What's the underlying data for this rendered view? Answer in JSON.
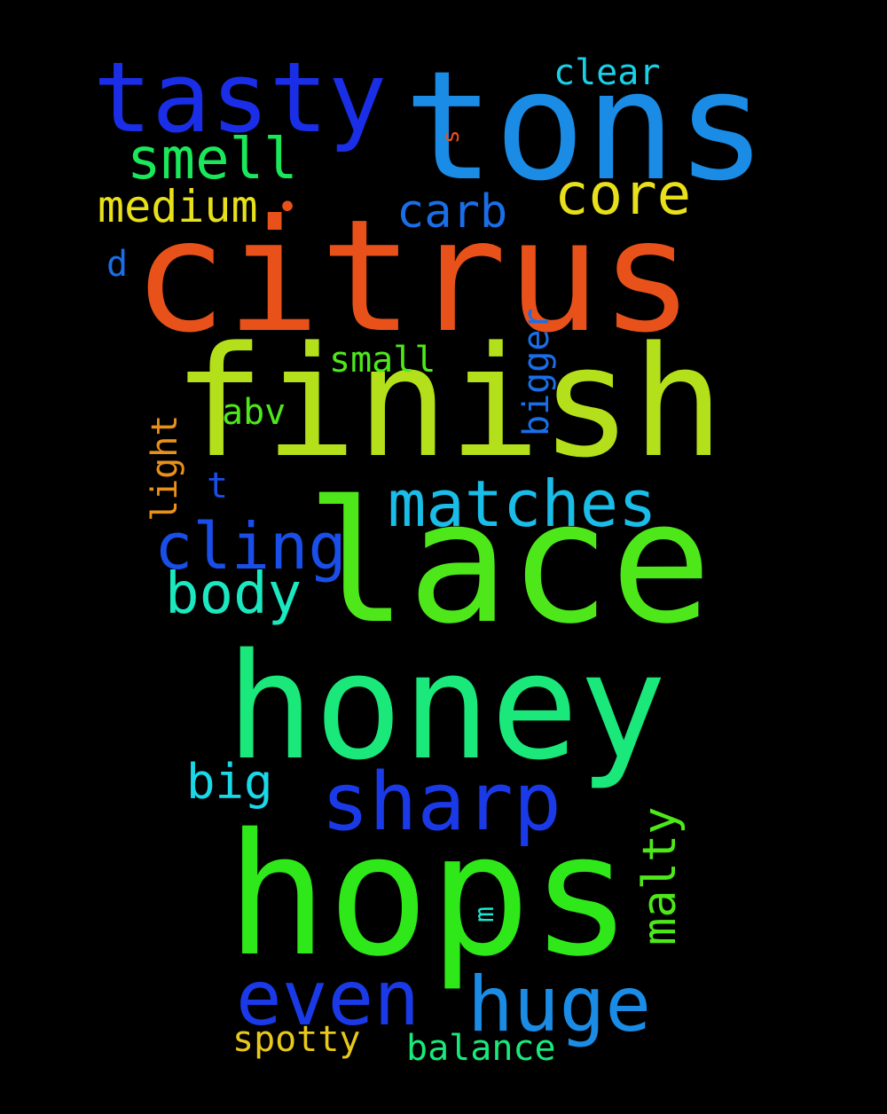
{
  "words": [
    {
      "id": "tons",
      "text": "tons",
      "color": "#1a8ce6"
    },
    {
      "id": "citrus",
      "text": "citrus",
      "color": "#e8521a"
    },
    {
      "id": "finish",
      "text": "finish",
      "color": "#b3e01a"
    },
    {
      "id": "lace",
      "text": "lace",
      "color": "#4ee81a"
    },
    {
      "id": "honey",
      "text": "honey",
      "color": "#1ae87a"
    },
    {
      "id": "hops",
      "text": "hops",
      "color": "#2ee81a"
    },
    {
      "id": "tasty",
      "text": "tasty",
      "color": "#1a2ee8"
    },
    {
      "id": "smell",
      "text": "smell",
      "color": "#1ae85a"
    },
    {
      "id": "core",
      "text": "core",
      "color": "#e8e01a"
    },
    {
      "id": "medium",
      "text": "medium",
      "color": "#e8e01a"
    },
    {
      "id": "carb",
      "text": "carb",
      "color": "#1a6ee8"
    },
    {
      "id": "clear",
      "text": "clear",
      "color": "#1ad0e8"
    },
    {
      "id": "s",
      "text": "s",
      "color": "#e8521a"
    },
    {
      "id": "dot",
      "text": "•",
      "color": "#e8521a"
    },
    {
      "id": "d",
      "text": "d",
      "color": "#1a6ee8"
    },
    {
      "id": "small",
      "text": "small",
      "color": "#4ee81a"
    },
    {
      "id": "abv",
      "text": "abv",
      "color": "#4ee81a"
    },
    {
      "id": "bigger",
      "text": "bigger",
      "color": "#1a6ee8"
    },
    {
      "id": "light",
      "text": "light",
      "color": "#e8901a"
    },
    {
      "id": "t",
      "text": "t",
      "color": "#1a4ee8"
    },
    {
      "id": "matches",
      "text": "matches",
      "color": "#1abce8"
    },
    {
      "id": "cling",
      "text": "cling",
      "color": "#1a4ee8"
    },
    {
      "id": "body",
      "text": "body",
      "color": "#1ae8c0"
    },
    {
      "id": "sharp",
      "text": "sharp",
      "color": "#1a3ae8"
    },
    {
      "id": "big",
      "text": "big",
      "color": "#1ad8e8"
    },
    {
      "id": "malty",
      "text": "malty",
      "color": "#4ee81a"
    },
    {
      "id": "m",
      "text": "m",
      "color": "#1ae8d0"
    },
    {
      "id": "even",
      "text": "even",
      "color": "#1a3ae8"
    },
    {
      "id": "huge",
      "text": "huge",
      "color": "#1a8ce6"
    },
    {
      "id": "spotty",
      "text": "spotty",
      "color": "#e8c81a"
    },
    {
      "id": "balance",
      "text": "balance",
      "color": "#1ae87a"
    }
  ]
}
